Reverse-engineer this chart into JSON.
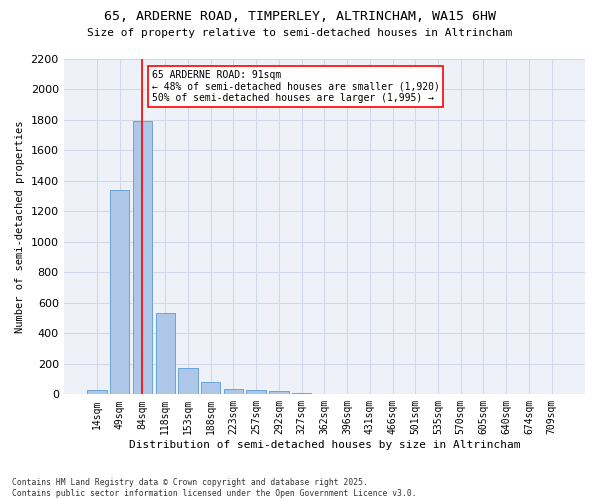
{
  "title_line1": "65, ARDERNE ROAD, TIMPERLEY, ALTRINCHAM, WA15 6HW",
  "title_line2": "Size of property relative to semi-detached houses in Altrincham",
  "xlabel": "Distribution of semi-detached houses by size in Altrincham",
  "ylabel": "Number of semi-detached properties",
  "footer": "Contains HM Land Registry data © Crown copyright and database right 2025.\nContains public sector information licensed under the Open Government Licence v3.0.",
  "bin_labels": [
    "14sqm",
    "49sqm",
    "84sqm",
    "118sqm",
    "153sqm",
    "188sqm",
    "223sqm",
    "257sqm",
    "292sqm",
    "327sqm",
    "362sqm",
    "396sqm",
    "431sqm",
    "466sqm",
    "501sqm",
    "535sqm",
    "570sqm",
    "605sqm",
    "640sqm",
    "674sqm",
    "709sqm"
  ],
  "bar_values": [
    30,
    1340,
    1790,
    535,
    175,
    80,
    35,
    30,
    22,
    10,
    0,
    0,
    0,
    0,
    0,
    0,
    0,
    0,
    0,
    0,
    0
  ],
  "bar_color": "#aec6e8",
  "bar_edge_color": "#5a9bd4",
  "grid_color": "#d0d8e8",
  "background_color": "#eef2f8",
  "vline_x": 2,
  "vline_color": "red",
  "annotation_title": "65 ARDERNE ROAD: 91sqm",
  "annotation_line1": "← 48% of semi-detached houses are smaller (1,920)",
  "annotation_line2": "50% of semi-detached houses are larger (1,995) →",
  "ylim": [
    0,
    2200
  ],
  "yticks": [
    0,
    200,
    400,
    600,
    800,
    1000,
    1200,
    1400,
    1600,
    1800,
    2000,
    2200
  ]
}
